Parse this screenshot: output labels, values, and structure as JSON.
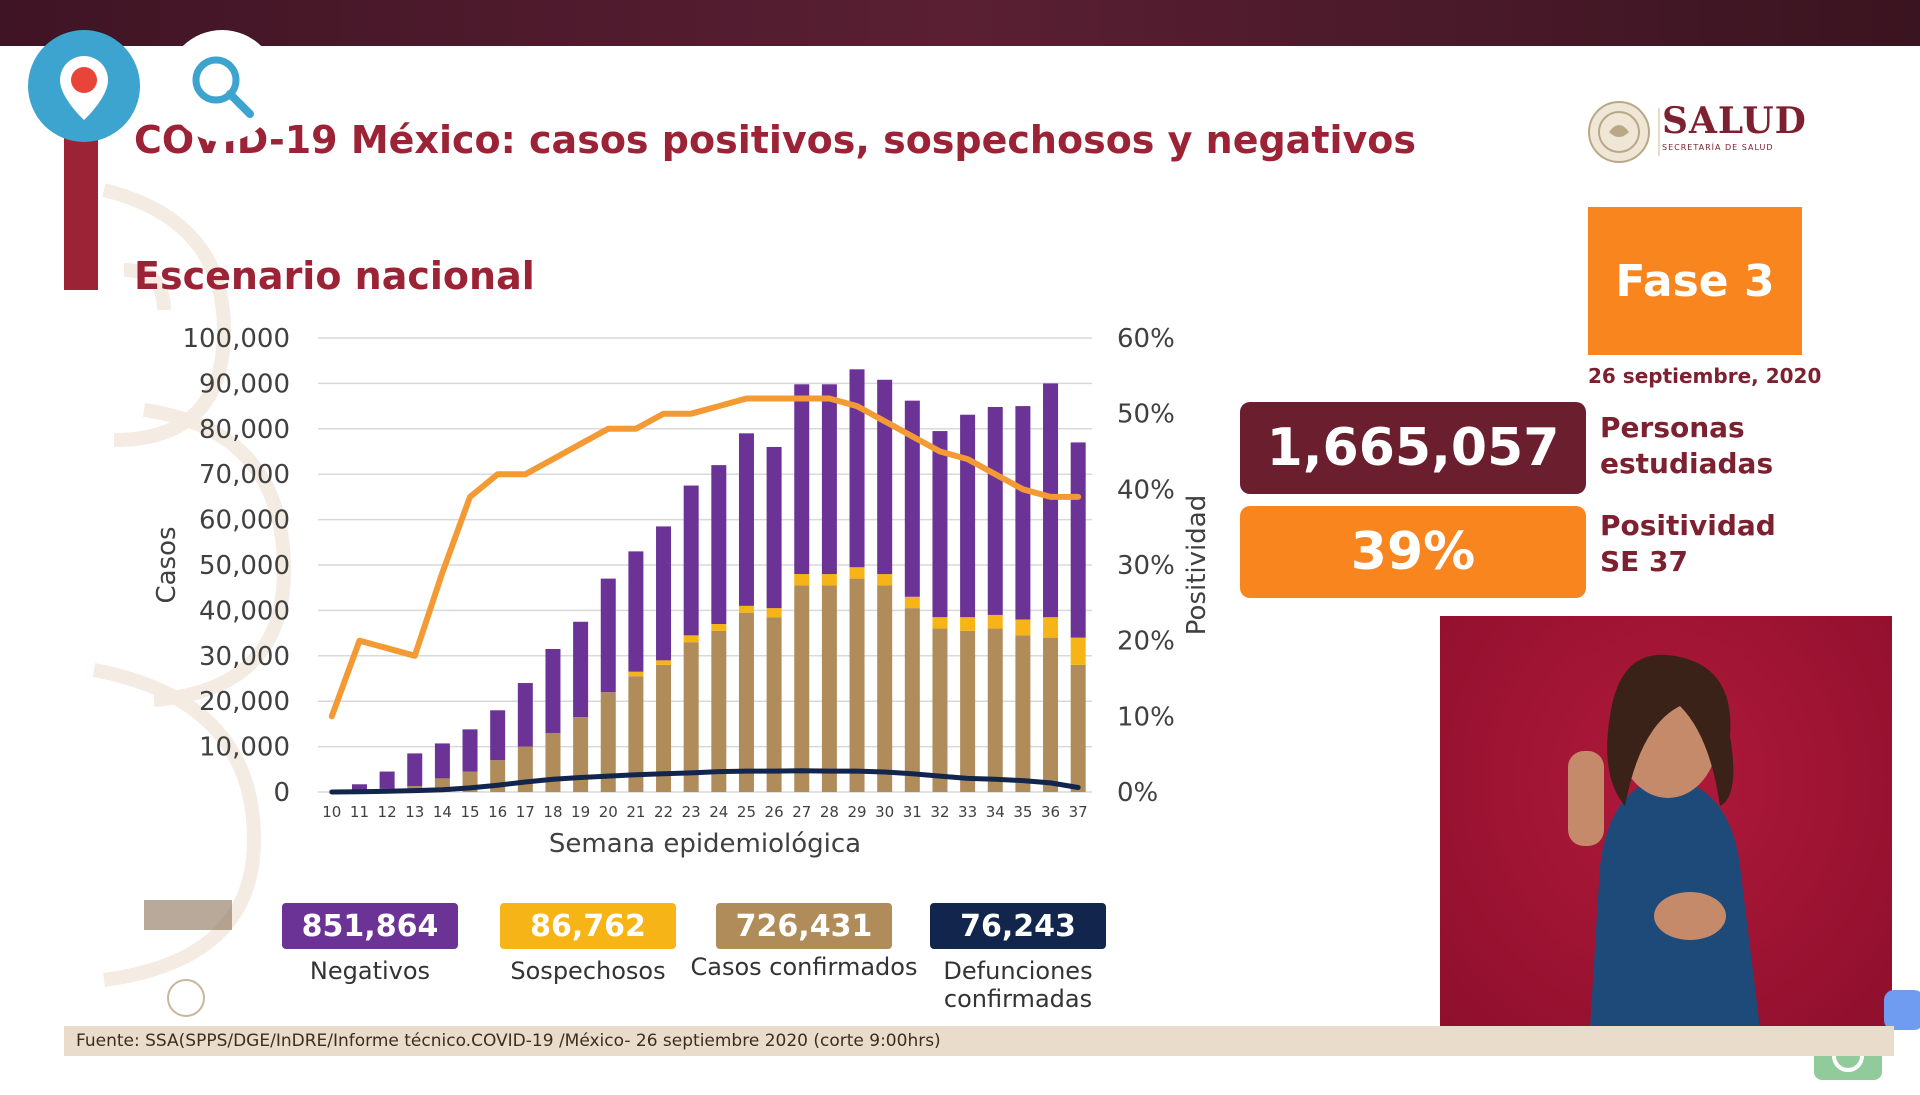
{
  "title": "COVID-19 México: casos positivos, sospechosos y negativos",
  "subtitle": "Escenario nacional",
  "logo": {
    "name": "SALUD",
    "sub": "SECRETARÍA DE SALUD"
  },
  "phase": "Fase 3",
  "date": "26 septiembre, 2020",
  "stats": {
    "studied_value": "1,665,057",
    "studied_label_1": "Personas",
    "studied_label_2": "estudiadas",
    "positivity_value": "39%",
    "positivity_label_1": "Positividad",
    "positivity_label_2": "SE 37"
  },
  "legend": [
    {
      "value": "851,864",
      "label": "Negativos",
      "color": "#6b3395"
    },
    {
      "value": "86,762",
      "label": "Sospechosos",
      "color": "#f7b416"
    },
    {
      "value": "726,431",
      "label": "Casos confirmados",
      "color": "#b08c5a"
    },
    {
      "value": "76,243",
      "label": "Defunciones confirmadas",
      "color": "#12264d"
    }
  ],
  "footer": "Fuente: SSA(SPPS/DGE/InDRE/Informe técnico.COVID-19 /México- 26 septiembre 2020 (corte 9:00hrs)",
  "chart_data": {
    "type": "bar",
    "xlabel": "Semana epidemiológica",
    "ylabel": "Casos",
    "y2label": "Positividad",
    "ylim": [
      0,
      100000
    ],
    "y2lim": [
      0,
      60
    ],
    "yticks": [
      "100,000",
      "90,000",
      "80,000",
      "70,000",
      "60,000",
      "50,000",
      "40,000",
      "30,000",
      "20,000",
      "10,000",
      "0"
    ],
    "y2ticks": [
      "60%",
      "50%",
      "40%",
      "30%",
      "20%",
      "10%",
      "0%"
    ],
    "grid": true,
    "categories": [
      "10",
      "11",
      "12",
      "13",
      "14",
      "15",
      "16",
      "17",
      "18",
      "19",
      "20",
      "21",
      "22",
      "23",
      "24",
      "25",
      "26",
      "27",
      "28",
      "29",
      "30",
      "31",
      "32",
      "33",
      "34",
      "35",
      "36",
      "37"
    ],
    "series": [
      {
        "name": "Casos confirmados",
        "kind": "stacked-bar",
        "color": "#b08c5a",
        "values": [
          0,
          200,
          700,
          1300,
          3000,
          4500,
          7000,
          10000,
          13000,
          16500,
          22000,
          25500,
          28000,
          33000,
          35500,
          39500,
          38500,
          45500,
          45500,
          47000,
          45500,
          40500,
          36000,
          35500,
          36000,
          34500,
          34000,
          28000
        ]
      },
      {
        "name": "Sospechosos",
        "kind": "stacked-bar",
        "color": "#f7b416",
        "values": [
          0,
          0,
          0,
          0,
          0,
          0,
          0,
          0,
          0,
          0,
          0,
          1000,
          1000,
          1500,
          1500,
          1500,
          2000,
          2500,
          2500,
          2500,
          2500,
          2500,
          2500,
          3000,
          3000,
          3500,
          4500,
          6000
        ]
      },
      {
        "name": "Negativos",
        "kind": "stacked-bar",
        "color": "#6b3395",
        "values": [
          0,
          1500,
          3800,
          7200,
          7700,
          9300,
          11000,
          14000,
          18500,
          21000,
          25000,
          26500,
          29500,
          33000,
          35000,
          38000,
          35500,
          41800,
          41800,
          43600,
          42800,
          43200,
          41000,
          44600,
          45800,
          47000,
          51500,
          43000
        ]
      },
      {
        "name": "Defunciones confirmadas",
        "kind": "line",
        "color": "#12264d",
        "values": [
          0,
          50,
          150,
          300,
          500,
          900,
          1500,
          2200,
          2800,
          3200,
          3500,
          3800,
          4000,
          4200,
          4500,
          4600,
          4600,
          4700,
          4600,
          4600,
          4400,
          4000,
          3500,
          3000,
          2800,
          2500,
          2000,
          1000
        ]
      },
      {
        "name": "Positividad",
        "kind": "line-y2",
        "color": "#f39a34",
        "values": [
          10,
          20,
          19,
          18,
          29,
          39,
          42,
          42,
          44,
          46,
          48,
          48,
          50,
          50,
          51,
          52,
          52,
          52,
          52,
          51,
          49,
          47,
          45,
          44,
          42,
          40,
          39,
          39
        ]
      }
    ]
  }
}
